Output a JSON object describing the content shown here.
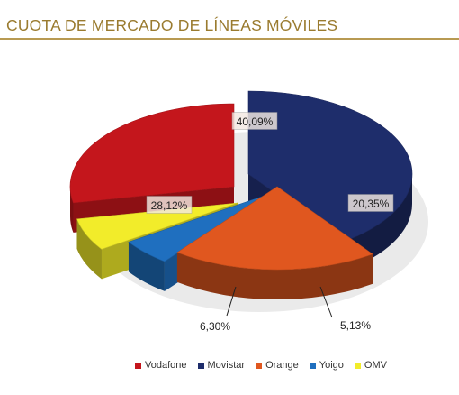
{
  "header": {
    "title": "CUOTA DE MERCADO DE LÍNEAS MÓVILES"
  },
  "chart_data": {
    "type": "pie",
    "title": "CUOTA DE MERCADO DE LÍNEAS MÓVILES",
    "categories": [
      "Movistar",
      "Orange",
      "Yoigo",
      "OMV",
      "Vodafone"
    ],
    "values": [
      40.09,
      20.35,
      5.13,
      6.3,
      28.12
    ],
    "labels": [
      "40,09%",
      "20,35%",
      "5,13%",
      "6,30%",
      "28,12%"
    ],
    "colors": {
      "Movistar": "#1e2d6b",
      "Orange": "#e0571f",
      "Yoigo": "#1f6fbf",
      "OMV": "#f2ec2a",
      "Vodafone": "#c4161c"
    },
    "exploded": true,
    "legend_position": "bottom",
    "legend": [
      "Vodafone",
      "Movistar",
      "Orange",
      "Yoigo",
      "OMV"
    ]
  }
}
